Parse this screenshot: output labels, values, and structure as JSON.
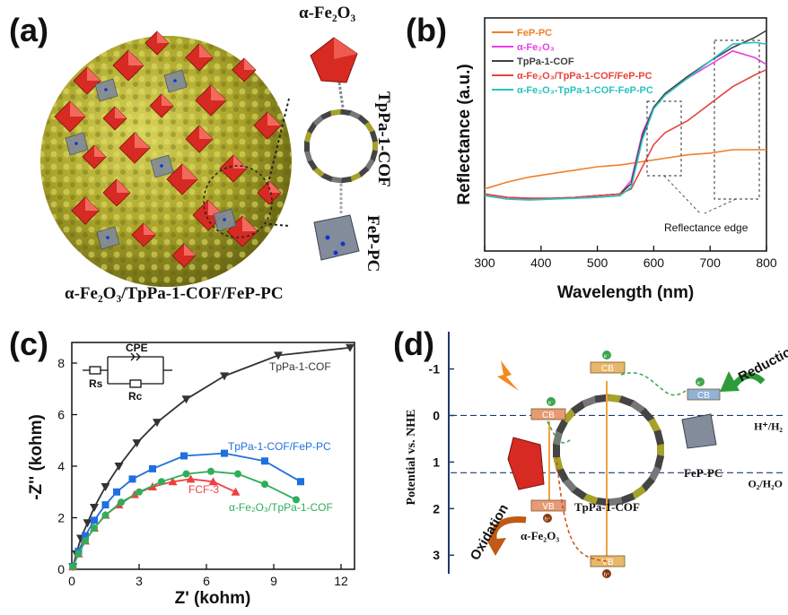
{
  "panels": {
    "a": {
      "letter": "(a)",
      "labels": {
        "fe2o3": "α-Fe₂O₃",
        "cof": "TpPa-1-COF",
        "fep": "FeP-PC",
        "composite": "α-Fe₂O₃/TpPa-1-COF/FeP-PC"
      }
    },
    "b": {
      "letter": "(b)"
    },
    "c": {
      "letter": "(c)"
    },
    "d": {
      "letter": "(d)"
    }
  },
  "colors": {
    "fep_pc": "#f07f2a",
    "fe2o3": "#e63fe0",
    "tppa": "#404040",
    "fe2o3_tppa_fep": "#e8453f",
    "fe2o3_tppa_fep_dash": "#28c3bf",
    "eis_tppa": "#333333",
    "eis_tppa_fep": "#1f6fe0",
    "eis_fcf3": "#ee4040",
    "eis_fe2o3_tppa": "#2fae59",
    "sphere": "#b3ae2a",
    "red_particle": "#d62a22",
    "gray_particle": "#808a98"
  },
  "chart_data": [
    {
      "panel": "b",
      "type": "line",
      "xlabel": "Wavelength (nm)",
      "ylabel": "Reflectance (a.u.)",
      "xlim": [
        300,
        800
      ],
      "xticks": [
        "300",
        "400",
        "500",
        "600",
        "700",
        "800"
      ],
      "ylim": [
        0,
        1
      ],
      "legend_position": "top-left",
      "annotation": "Reflectance edge",
      "series": [
        {
          "name": "FeP-PC",
          "color": "#f07f2a",
          "x": [
            300,
            340,
            380,
            420,
            460,
            500,
            540,
            580,
            620,
            660,
            700,
            740,
            780,
            800
          ],
          "y": [
            0.07,
            0.11,
            0.14,
            0.16,
            0.18,
            0.2,
            0.21,
            0.23,
            0.25,
            0.27,
            0.28,
            0.3,
            0.3,
            0.3
          ]
        },
        {
          "name": "α-Fe₂O₃",
          "color": "#e63fe0",
          "x": [
            300,
            340,
            380,
            420,
            460,
            500,
            540,
            560,
            580,
            600,
            620,
            660,
            700,
            740,
            780,
            800
          ],
          "y": [
            0.04,
            0.02,
            0.01,
            0.015,
            0.02,
            0.03,
            0.04,
            0.12,
            0.4,
            0.55,
            0.62,
            0.72,
            0.8,
            0.88,
            0.84,
            0.8
          ]
        },
        {
          "name": "TpPa-1-COF",
          "color": "#404040",
          "x": [
            300,
            340,
            380,
            420,
            460,
            500,
            540,
            560,
            580,
            600,
            620,
            660,
            700,
            740,
            780,
            800
          ],
          "y": [
            0.04,
            0.02,
            0.015,
            0.015,
            0.02,
            0.03,
            0.04,
            0.1,
            0.38,
            0.55,
            0.63,
            0.73,
            0.82,
            0.9,
            0.96,
            1.0
          ]
        },
        {
          "name": "α-Fe₂O₃/TpPa-1-COF/FeP-PC",
          "color": "#e8453f",
          "x": [
            300,
            340,
            380,
            420,
            460,
            500,
            540,
            560,
            580,
            600,
            620,
            660,
            700,
            740,
            780,
            800
          ],
          "y": [
            0.04,
            0.02,
            0.015,
            0.015,
            0.02,
            0.03,
            0.04,
            0.07,
            0.2,
            0.33,
            0.4,
            0.47,
            0.57,
            0.67,
            0.74,
            0.77
          ]
        },
        {
          "name": "α-Fe₂O₃-TpPa-1-COF-FeP-PC",
          "color": "#28c3bf",
          "x": [
            300,
            340,
            380,
            420,
            460,
            500,
            540,
            560,
            580,
            600,
            620,
            660,
            700,
            740,
            780,
            800
          ],
          "y": [
            0.03,
            0.01,
            0.005,
            0.01,
            0.015,
            0.02,
            0.03,
            0.08,
            0.36,
            0.54,
            0.62,
            0.72,
            0.82,
            0.92,
            0.93,
            0.92
          ]
        }
      ]
    },
    {
      "panel": "c",
      "type": "scatter",
      "xlabel": "Z' (kohm)",
      "ylabel": "-Z'' (kohm)",
      "xlim": [
        0,
        12.6
      ],
      "ylim": [
        0,
        8.8
      ],
      "xticks": [
        "0",
        "3",
        "6",
        "9",
        "12"
      ],
      "yticks": [
        "0",
        "2",
        "4",
        "6",
        "8"
      ],
      "circuit": {
        "title": "CPE",
        "rs": "Rs",
        "rc": "Rc"
      },
      "series": [
        {
          "name": "TpPa-1-COF",
          "color": "#333333",
          "marker": "triangle-down",
          "x": [
            0.05,
            0.2,
            0.4,
            0.7,
            1.0,
            1.5,
            2.1,
            2.9,
            3.8,
            5.1,
            6.8,
            9.2,
            12.4
          ],
          "y": [
            0.1,
            0.6,
            1.2,
            1.8,
            2.4,
            3.2,
            4.0,
            4.9,
            5.7,
            6.6,
            7.5,
            8.3,
            8.6
          ]
        },
        {
          "name": "TpPa-1-COF/FeP-PC",
          "color": "#1f6fe0",
          "marker": "square",
          "x": [
            0.05,
            0.3,
            0.6,
            1.0,
            1.5,
            2.0,
            2.7,
            3.6,
            5.0,
            6.8,
            8.6,
            10.2
          ],
          "y": [
            0.1,
            0.7,
            1.3,
            1.9,
            2.5,
            3.0,
            3.5,
            3.9,
            4.4,
            4.5,
            4.2,
            3.4
          ]
        },
        {
          "name": "FCF-3",
          "color": "#ee4040",
          "marker": "triangle-up",
          "x": [
            0.05,
            0.3,
            0.6,
            1.0,
            1.5,
            2.1,
            2.8,
            3.6,
            4.5,
            5.3,
            6.3,
            7.3
          ],
          "y": [
            0.1,
            0.6,
            1.1,
            1.6,
            2.1,
            2.5,
            2.9,
            3.2,
            3.4,
            3.5,
            3.4,
            3.0
          ]
        },
        {
          "name": "α-Fe₂O₃/TpPa-1-COF",
          "color": "#2fae59",
          "marker": "circle",
          "x": [
            0.05,
            0.3,
            0.6,
            1.0,
            1.5,
            2.2,
            3.0,
            4.0,
            5.1,
            6.2,
            7.4,
            8.6,
            10.0
          ],
          "y": [
            0.1,
            0.6,
            1.1,
            1.6,
            2.1,
            2.6,
            3.0,
            3.4,
            3.7,
            3.8,
            3.7,
            3.3,
            2.7
          ]
        }
      ]
    },
    {
      "panel": "d",
      "type": "diagram",
      "ylabel": "Potential vs. NHE",
      "yticks": [
        "-1",
        "0",
        "1",
        "2",
        "3"
      ],
      "ylim": [
        -1.8,
        3.4
      ],
      "levels": [
        {
          "label": "H⁺/H₂",
          "value": 0.0
        },
        {
          "label": "O₂/H₂O",
          "value": 1.23
        }
      ],
      "bands": {
        "cb": "CB",
        "vb": "VB"
      },
      "electron": "e⁻",
      "hole": "h⁺",
      "labels": {
        "fe2o3": "α-Fe₂O₃",
        "tppa": "TpPa-1-COF",
        "fep": "FeP-PC",
        "reduction": "Reduction",
        "oxidation": "Oxidation"
      }
    }
  ]
}
